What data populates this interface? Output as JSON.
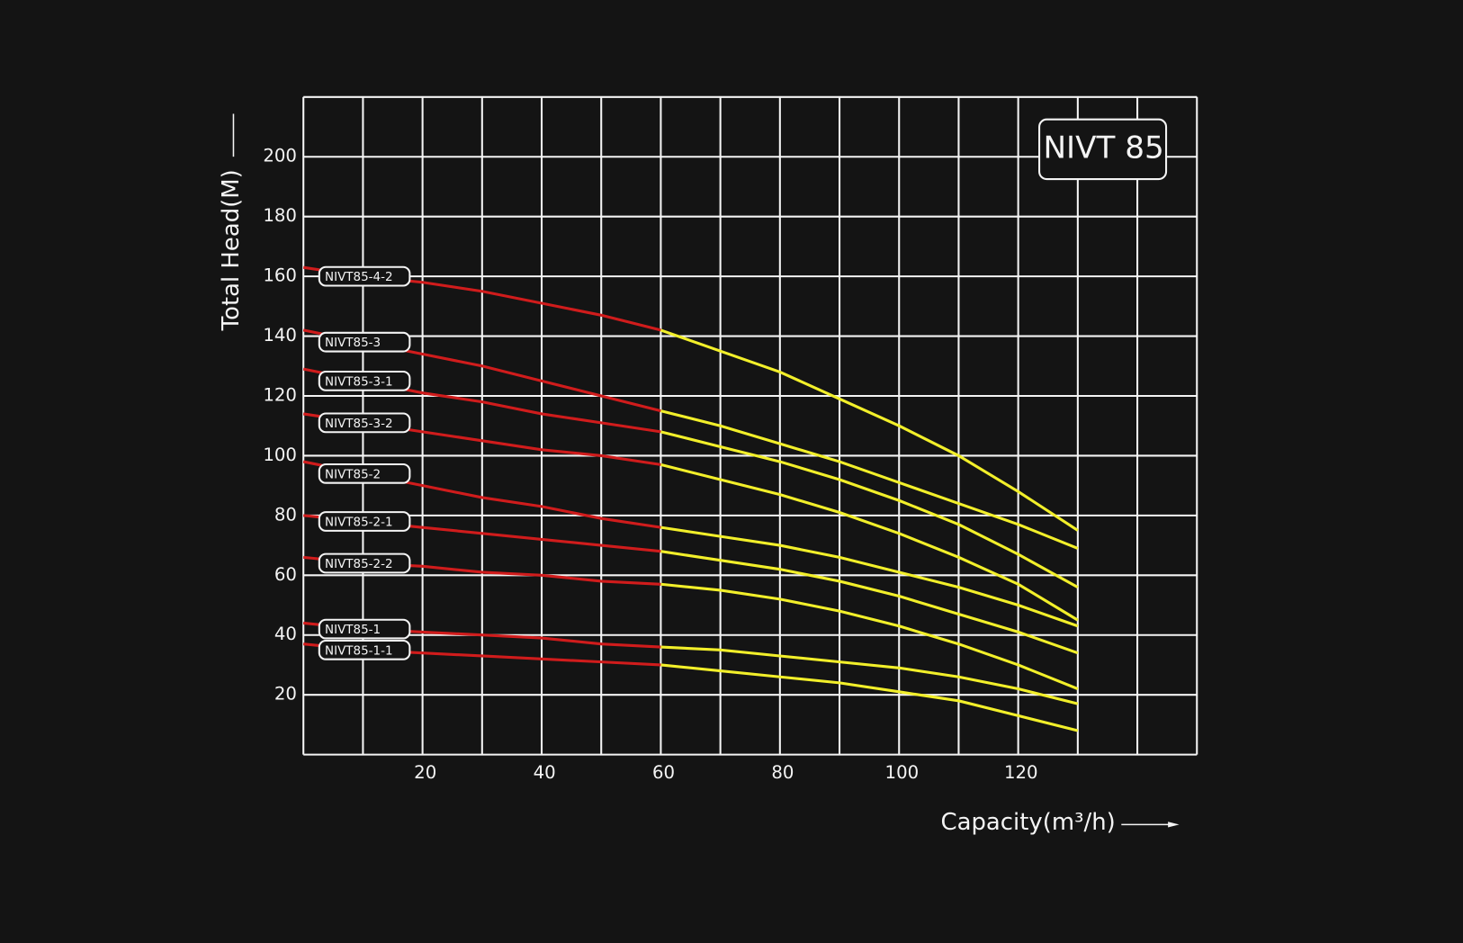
{
  "chart_data": {
    "type": "line",
    "title": "NIVT 85",
    "x_label": "Capacity(m³/h)",
    "y_label": "Total Head(M)",
    "x": [
      0,
      10,
      20,
      30,
      40,
      50,
      60,
      70,
      80,
      90,
      100,
      110,
      120,
      130
    ],
    "xlim": [
      0,
      150
    ],
    "ylim": [
      0,
      220
    ],
    "xticks": [
      20,
      40,
      60,
      80,
      100,
      120
    ],
    "yticks": [
      20,
      40,
      60,
      80,
      100,
      120,
      140,
      160,
      180,
      200
    ],
    "xgrid": [
      0,
      10,
      20,
      30,
      40,
      50,
      60,
      70,
      80,
      90,
      100,
      110,
      120,
      130,
      140,
      150
    ],
    "ygrid": [
      0,
      20,
      40,
      60,
      80,
      100,
      120,
      140,
      160,
      180,
      200,
      220
    ],
    "grid": true,
    "split_x": 60,
    "color": "#d01c1c",
    "color2": "#f2ef2a",
    "series": [
      {
        "name": "NIVT85-4-2",
        "values": [
          163,
          160,
          158,
          155,
          151,
          147,
          142,
          135,
          128,
          119,
          110,
          100,
          88,
          75
        ]
      },
      {
        "name": "NIVT85-3",
        "values": [
          142,
          138,
          134,
          130,
          125,
          120,
          115,
          110,
          104,
          98,
          91,
          84,
          77,
          69
        ]
      },
      {
        "name": "NIVT85-3-1",
        "values": [
          129,
          125,
          121,
          118,
          114,
          111,
          108,
          103,
          98,
          92,
          85,
          77,
          67,
          56
        ]
      },
      {
        "name": "NIVT85-3-2",
        "values": [
          114,
          111,
          108,
          105,
          102,
          100,
          97,
          92,
          87,
          81,
          74,
          66,
          57,
          45
        ]
      },
      {
        "name": "NIVT85-2",
        "values": [
          98,
          94,
          90,
          86,
          83,
          79,
          76,
          73,
          70,
          66,
          61,
          56,
          50,
          43
        ]
      },
      {
        "name": "NIVT85-2-1",
        "values": [
          80,
          78,
          76,
          74,
          72,
          70,
          68,
          65,
          62,
          58,
          53,
          47,
          41,
          34
        ]
      },
      {
        "name": "NIVT85-2-2",
        "values": [
          66,
          64,
          63,
          61,
          60,
          58,
          57,
          55,
          52,
          48,
          43,
          37,
          30,
          22
        ]
      },
      {
        "name": "NIVT85-1",
        "values": [
          44,
          42,
          41,
          40,
          39,
          37,
          36,
          35,
          33,
          31,
          29,
          26,
          22,
          17
        ]
      },
      {
        "name": "NIVT85-1-1",
        "values": [
          37,
          35,
          34,
          33,
          32,
          31,
          30,
          28,
          26,
          24,
          21,
          18,
          13,
          8
        ]
      }
    ]
  }
}
